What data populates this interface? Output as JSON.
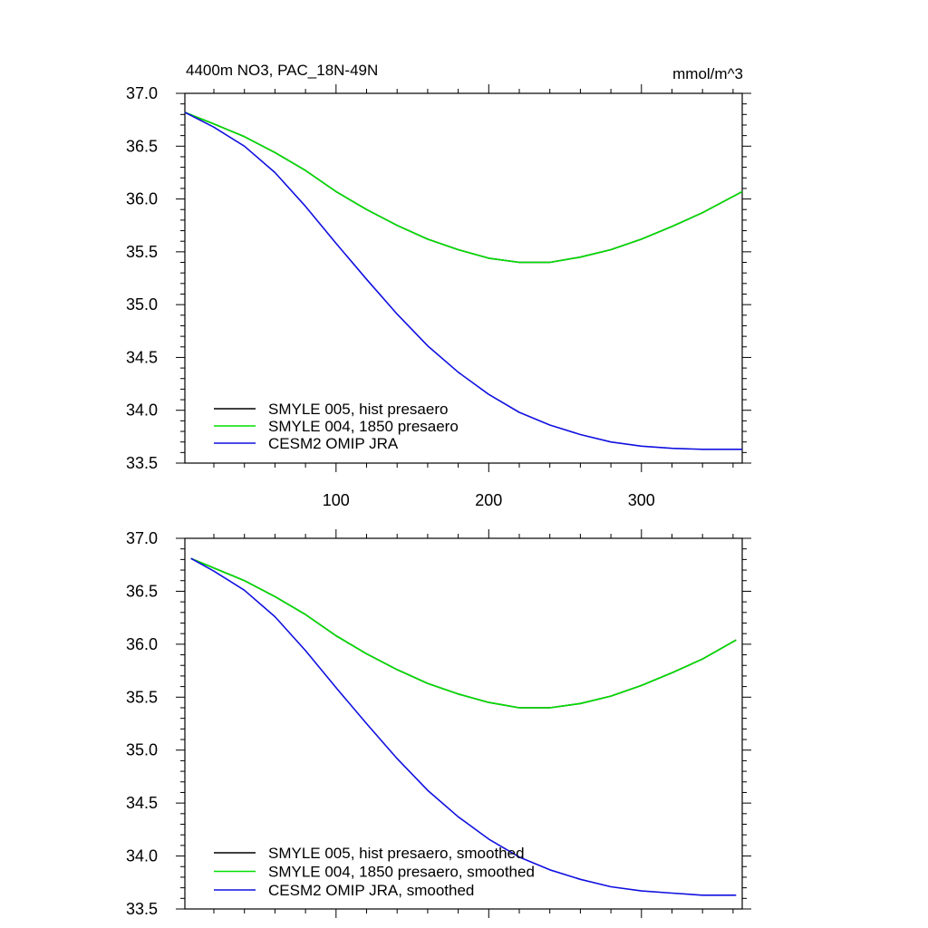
{
  "colors": {
    "SMYLE 005": "#000000",
    "SMYLE 004": "#00e000",
    "CESM2": "#1010e0"
  },
  "chart_data": [
    {
      "type": "line",
      "title_left": "4400m NO3, PAC_18N-49N",
      "title_right": "mmol/m^3",
      "xlim": [
        1,
        366
      ],
      "ylim": [
        33.5,
        37.0
      ],
      "xticks": [
        100,
        200,
        300
      ],
      "xtick_labels": [
        "100",
        "200",
        "300"
      ],
      "yticks": [
        33.5,
        34.0,
        34.5,
        35.0,
        35.5,
        36.0,
        36.5,
        37.0
      ],
      "ytick_labels": [
        "33.5",
        "34.0",
        "34.5",
        "35.0",
        "35.5",
        "36.0",
        "36.5",
        "37.0"
      ],
      "legend_position": "bottom-left",
      "series": [
        {
          "name": "SMYLE 005, hist presaero",
          "color": "#000000",
          "x": [
            1,
            20,
            40,
            60,
            80,
            100,
            120,
            140,
            160,
            180,
            200,
            220,
            240,
            260,
            280,
            300,
            320,
            340,
            366
          ],
          "y": [
            36.82,
            36.71,
            36.59,
            36.44,
            36.27,
            36.07,
            35.9,
            35.75,
            35.62,
            35.52,
            35.44,
            35.4,
            35.4,
            35.45,
            35.52,
            35.62,
            35.74,
            35.87,
            36.07
          ]
        },
        {
          "name": "SMYLE 004, 1850 presaero",
          "color": "#00e000",
          "x": [
            1,
            20,
            40,
            60,
            80,
            100,
            120,
            140,
            160,
            180,
            200,
            220,
            240,
            260,
            280,
            300,
            320,
            340,
            366
          ],
          "y": [
            36.82,
            36.71,
            36.59,
            36.44,
            36.27,
            36.07,
            35.9,
            35.75,
            35.62,
            35.52,
            35.44,
            35.4,
            35.4,
            35.45,
            35.52,
            35.62,
            35.74,
            35.87,
            36.07
          ]
        },
        {
          "name": "CESM2 OMIP JRA",
          "color": "#1010e0",
          "x": [
            1,
            20,
            40,
            60,
            80,
            100,
            120,
            140,
            160,
            180,
            200,
            220,
            240,
            260,
            280,
            300,
            320,
            340,
            366
          ],
          "y": [
            36.82,
            36.68,
            36.5,
            36.25,
            35.93,
            35.58,
            35.24,
            34.91,
            34.61,
            34.36,
            34.15,
            33.98,
            33.86,
            33.77,
            33.7,
            33.66,
            33.64,
            33.63,
            33.63
          ]
        }
      ]
    },
    {
      "type": "line",
      "xlim": [
        1,
        366
      ],
      "ylim": [
        33.5,
        37.0
      ],
      "xticks": [
        100,
        200,
        300
      ],
      "xtick_labels": [],
      "yticks": [
        33.5,
        34.0,
        34.5,
        35.0,
        35.5,
        36.0,
        36.5,
        37.0
      ],
      "ytick_labels": [
        "33.5",
        "34.0",
        "34.5",
        "35.0",
        "35.5",
        "36.0",
        "36.5",
        "37.0"
      ],
      "legend_position": "bottom-left",
      "series": [
        {
          "name": "SMYLE 005, hist presaero, smoothed",
          "color": "#000000",
          "x": [
            5,
            20,
            40,
            60,
            80,
            100,
            120,
            140,
            160,
            180,
            200,
            220,
            240,
            260,
            280,
            300,
            320,
            340,
            362
          ],
          "y": [
            36.81,
            36.72,
            36.6,
            36.45,
            36.28,
            36.08,
            35.91,
            35.76,
            35.63,
            35.53,
            35.45,
            35.4,
            35.4,
            35.44,
            35.51,
            35.61,
            35.73,
            35.86,
            36.04
          ]
        },
        {
          "name": "SMYLE 004, 1850 presaero, smoothed",
          "color": "#00e000",
          "x": [
            5,
            20,
            40,
            60,
            80,
            100,
            120,
            140,
            160,
            180,
            200,
            220,
            240,
            260,
            280,
            300,
            320,
            340,
            362
          ],
          "y": [
            36.81,
            36.72,
            36.6,
            36.45,
            36.28,
            36.08,
            35.91,
            35.76,
            35.63,
            35.53,
            35.45,
            35.4,
            35.4,
            35.44,
            35.51,
            35.61,
            35.73,
            35.86,
            36.04
          ]
        },
        {
          "name": "CESM2 OMIP JRA, smoothed",
          "color": "#1010e0",
          "x": [
            5,
            20,
            40,
            60,
            80,
            100,
            120,
            140,
            160,
            180,
            200,
            220,
            240,
            260,
            280,
            300,
            320,
            340,
            362
          ],
          "y": [
            36.81,
            36.69,
            36.51,
            36.26,
            35.94,
            35.59,
            35.25,
            34.92,
            34.62,
            34.37,
            34.16,
            33.99,
            33.87,
            33.78,
            33.71,
            33.67,
            33.65,
            33.63,
            33.63
          ]
        }
      ]
    }
  ]
}
